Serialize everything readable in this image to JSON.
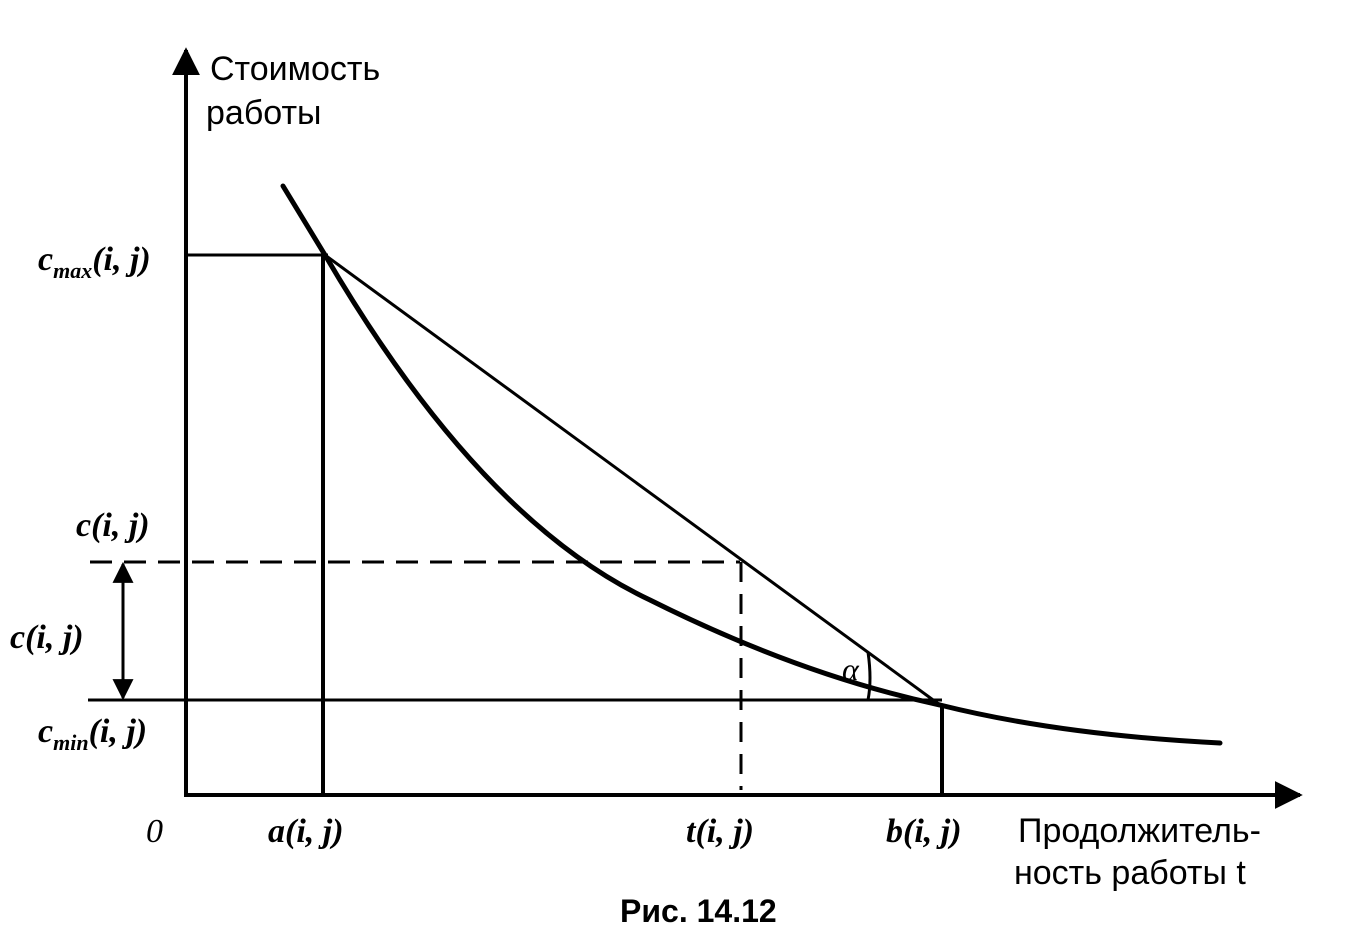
{
  "y_axis_label": [
    "Стоимость",
    "работы"
  ],
  "x_axis_label": [
    "Продолжитель-",
    "ность работы t"
  ],
  "origin_label": "0",
  "labels": {
    "c_max": {
      "main": "c",
      "sub": "max",
      "args": "(i, j)"
    },
    "c_top": "c(i, j)",
    "c_delta": "c(i, j)",
    "c_min": {
      "main": "c",
      "sub": "min",
      "args": "(i, j)"
    },
    "a": "a(i, j)",
    "t": "t(i, j)",
    "b": "b(i, j)",
    "alpha": "α"
  },
  "caption": "Рис. 14.12"
}
